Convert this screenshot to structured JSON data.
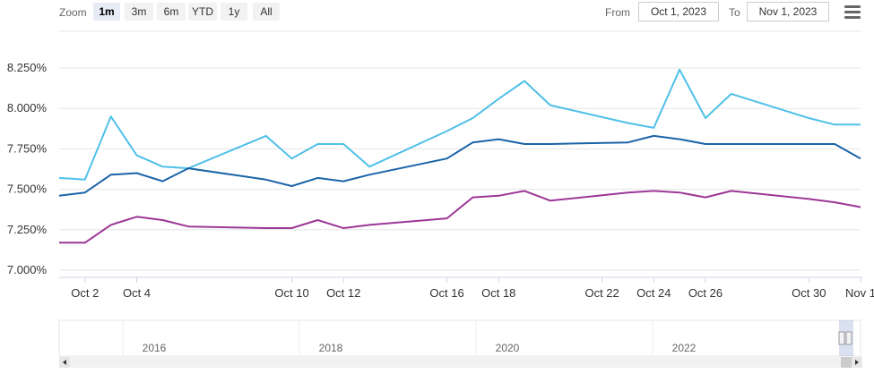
{
  "toolbar": {
    "zoom_label": "Zoom",
    "zoom_buttons": [
      "1m",
      "3m",
      "6m",
      "YTD",
      "1y",
      "All"
    ],
    "active_zoom": "1m",
    "from_label": "From",
    "from_value": "Oct 1, 2023",
    "to_label": "To",
    "to_value": "Nov 1, 2023",
    "menu_icon": "hamburger-menu-icon"
  },
  "chart_data": {
    "type": "line",
    "ylim": [
      7.0,
      8.25
    ],
    "y_tick_labels": [
      "7.000%",
      "7.250%",
      "7.500%",
      "7.750%",
      "8.000%",
      "8.250%"
    ],
    "x_tick_labels": [
      {
        "day": 2,
        "label": "Oct 2"
      },
      {
        "day": 4,
        "label": "Oct 4"
      },
      {
        "day": 10,
        "label": "Oct 10"
      },
      {
        "day": 12,
        "label": "Oct 12"
      },
      {
        "day": 16,
        "label": "Oct 16"
      },
      {
        "day": 18,
        "label": "Oct 18"
      },
      {
        "day": 22,
        "label": "Oct 22"
      },
      {
        "day": 24,
        "label": "Oct 24"
      },
      {
        "day": 26,
        "label": "Oct 26"
      },
      {
        "day": 30,
        "label": "Oct 30"
      },
      {
        "day": 32,
        "label": "Nov 1"
      }
    ],
    "x": [
      "2023-10-01",
      "2023-10-02",
      "2023-10-03",
      "2023-10-04",
      "2023-10-05",
      "2023-10-06",
      "2023-10-09",
      "2023-10-10",
      "2023-10-11",
      "2023-10-12",
      "2023-10-13",
      "2023-10-16",
      "2023-10-17",
      "2023-10-18",
      "2023-10-19",
      "2023-10-20",
      "2023-10-23",
      "2023-10-24",
      "2023-10-25",
      "2023-10-26",
      "2023-10-27",
      "2023-10-30",
      "2023-10-31",
      "2023-11-01"
    ],
    "x_days": [
      1,
      2,
      3,
      4,
      5,
      6,
      9,
      10,
      11,
      12,
      13,
      16,
      17,
      18,
      19,
      20,
      23,
      24,
      25,
      26,
      27,
      30,
      31,
      32
    ],
    "series": [
      {
        "color": "#4fc0e8",
        "values": [
          7.57,
          7.56,
          7.95,
          7.71,
          7.64,
          7.63,
          7.83,
          7.69,
          7.78,
          7.78,
          7.64,
          7.86,
          7.94,
          8.06,
          8.17,
          8.02,
          7.91,
          7.88,
          8.24,
          7.94,
          8.09,
          7.94,
          7.9,
          7.9
        ]
      },
      {
        "color": "#1a63a8",
        "values": [
          7.46,
          7.48,
          7.59,
          7.6,
          7.55,
          7.63,
          7.56,
          7.52,
          7.57,
          7.55,
          7.59,
          7.69,
          7.79,
          7.81,
          7.78,
          7.78,
          7.79,
          7.83,
          7.81,
          7.78,
          7.78,
          7.78,
          7.78,
          7.69
        ]
      },
      {
        "color": "#9c3796",
        "values": [
          7.17,
          7.17,
          7.28,
          7.33,
          7.31,
          7.27,
          7.26,
          7.26,
          7.31,
          7.26,
          7.28,
          7.32,
          7.45,
          7.46,
          7.49,
          7.43,
          7.48,
          7.49,
          7.48,
          7.45,
          7.49,
          7.44,
          7.42,
          7.39
        ]
      }
    ],
    "navigator_years": [
      "2016",
      "2018",
      "2020",
      "2022"
    ],
    "grid": true,
    "legend": "none"
  }
}
